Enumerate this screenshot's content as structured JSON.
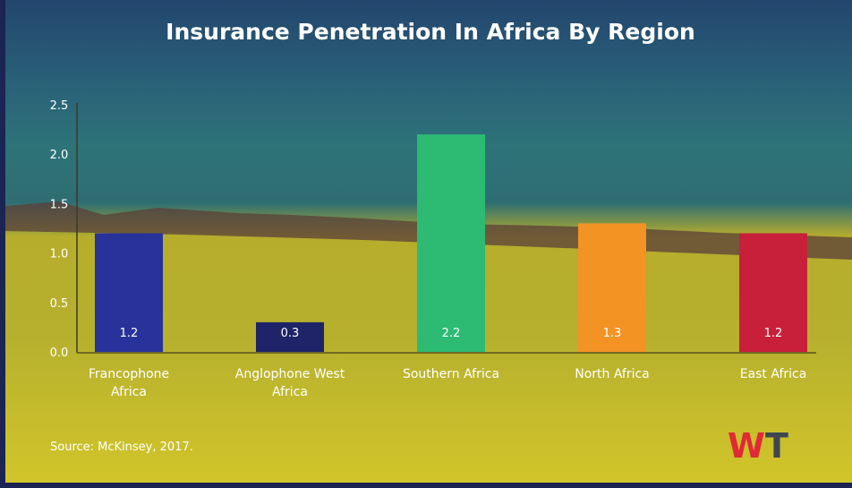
{
  "chart_data": {
    "type": "bar",
    "title": "Insurance Penetration In Africa By Region",
    "categories": [
      [
        "Francophone",
        "Africa"
      ],
      [
        "Anglophone West",
        "Africa"
      ],
      [
        "Southern Africa"
      ],
      [
        "North Africa"
      ],
      [
        "East Africa"
      ]
    ],
    "values": [
      1.2,
      0.3,
      2.2,
      1.3,
      1.2
    ],
    "value_labels": [
      "1.2",
      "0.3",
      "2.2",
      "1.3",
      "1.2"
    ],
    "colors": [
      "#27339a",
      "#1f2468",
      "#2dbb74",
      "#f39324",
      "#c8203a"
    ],
    "yticks": [
      "0.0",
      "0.5",
      "1.0",
      "1.5",
      "2.0",
      "2.5"
    ],
    "ylim": [
      0,
      2.5
    ],
    "xlabel": "",
    "ylabel": "",
    "grid": false
  },
  "source": "Source:  McKinsey, 2017.",
  "logo": "WT"
}
